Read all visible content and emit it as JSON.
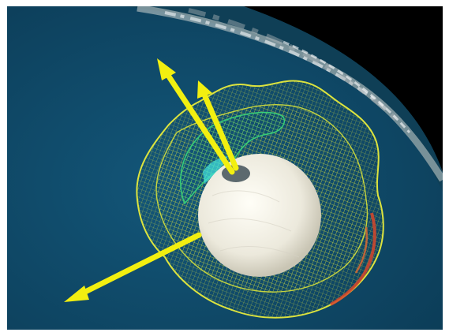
{
  "scene": {
    "icons": {
      "earth": "earth-globe-icon",
      "mesh": "wireframe-lobe-icon",
      "sphere": "central-sphere-icon",
      "arrow": "vector-arrow-icon"
    },
    "colors": {
      "frame": "#ffffff",
      "ocean": "#0f4a6a",
      "space": "#000000",
      "sphere": "#f1efe6",
      "arrow": "#f2ef10",
      "mesh_yellow": "#e8ec3c",
      "mesh_green": "#2fcf6a",
      "mesh_red": "#d6452a"
    }
  }
}
